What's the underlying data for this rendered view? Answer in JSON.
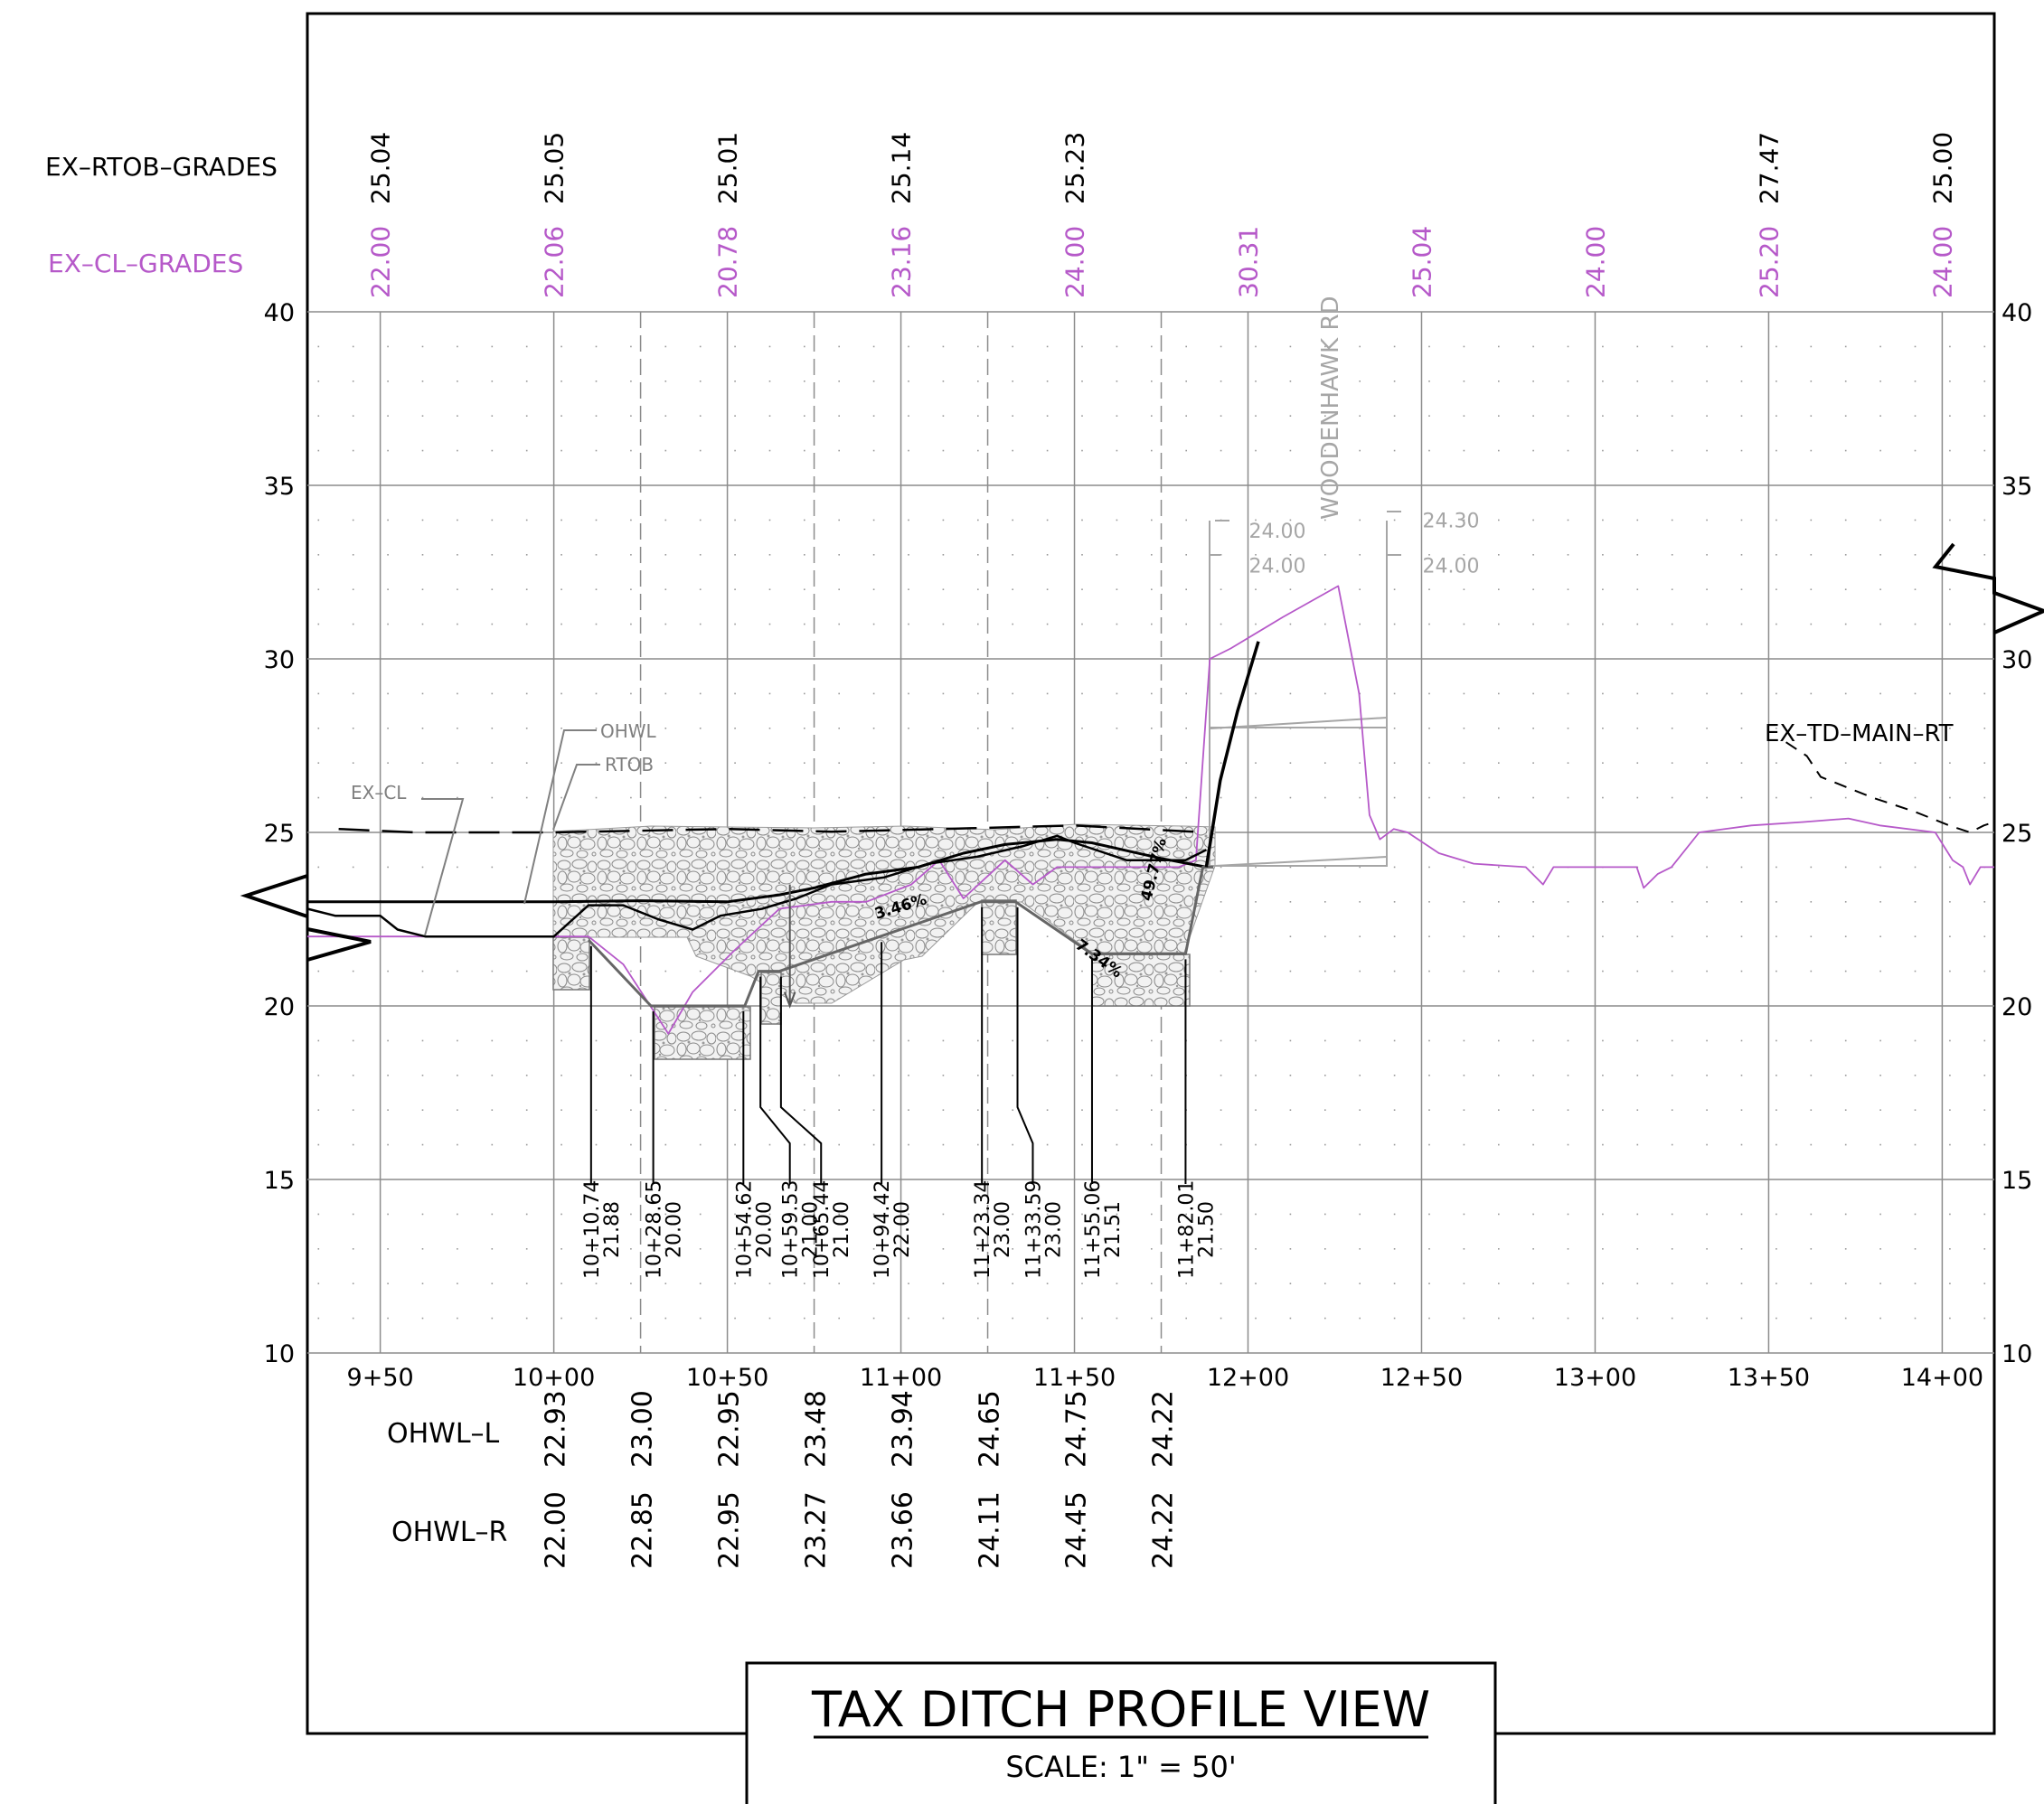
{
  "title": {
    "main": "TAX DITCH PROFILE VIEW",
    "scale": "SCALE: 1\" = 50'"
  },
  "rows": {
    "rtob_label": "EX–RTOB–GRADES",
    "cl_label": "EX–CL–GRADES",
    "rtob_values": [
      {
        "station": 950,
        "text": "25.04"
      },
      {
        "station": 1000,
        "text": "25.05"
      },
      {
        "station": 1050,
        "text": "25.01"
      },
      {
        "station": 1100,
        "text": "25.14"
      },
      {
        "station": 1150,
        "text": "25.23"
      },
      {
        "station": 1350,
        "text": "27.47"
      },
      {
        "station": 1400,
        "text": "25.00"
      }
    ],
    "cl_values": [
      {
        "station": 950,
        "text": "22.00"
      },
      {
        "station": 1000,
        "text": "22.06"
      },
      {
        "station": 1050,
        "text": "20.78"
      },
      {
        "station": 1100,
        "text": "23.16"
      },
      {
        "station": 1150,
        "text": "24.00"
      },
      {
        "station": 1200,
        "text": "30.31"
      },
      {
        "station": 1250,
        "text": "25.04"
      },
      {
        "station": 1300,
        "text": "24.00"
      },
      {
        "station": 1350,
        "text": "25.20"
      },
      {
        "station": 1400,
        "text": "24.00"
      }
    ],
    "ohwl_l_label": "OHWL–L",
    "ohwl_r_label": "OHWL–R",
    "ohwl_l_values": [
      {
        "station": 1000,
        "text": "22.93"
      },
      {
        "station": 1025,
        "text": "23.00"
      },
      {
        "station": 1050,
        "text": "22.95"
      },
      {
        "station": 1075,
        "text": "23.48"
      },
      {
        "station": 1100,
        "text": "23.94"
      },
      {
        "station": 1125,
        "text": "24.65"
      },
      {
        "station": 1150,
        "text": "24.75"
      },
      {
        "station": 1175,
        "text": "24.22"
      }
    ],
    "ohwl_r_values": [
      {
        "station": 1000,
        "text": "22.00"
      },
      {
        "station": 1025,
        "text": "22.85"
      },
      {
        "station": 1050,
        "text": "22.95"
      },
      {
        "station": 1075,
        "text": "23.27"
      },
      {
        "station": 1100,
        "text": "23.66"
      },
      {
        "station": 1125,
        "text": "24.11"
      },
      {
        "station": 1150,
        "text": "24.45"
      },
      {
        "station": 1175,
        "text": "24.22"
      }
    ]
  },
  "axes": {
    "elevation_ticks": [
      "10",
      "15",
      "20",
      "25",
      "30",
      "35",
      "40"
    ],
    "station_ticks": [
      {
        "station": 950,
        "text": "9+50"
      },
      {
        "station": 1000,
        "text": "10+00"
      },
      {
        "station": 1050,
        "text": "10+50"
      },
      {
        "station": 1100,
        "text": "11+00"
      },
      {
        "station": 1150,
        "text": "11+50"
      },
      {
        "station": 1200,
        "text": "12+00"
      },
      {
        "station": 1250,
        "text": "12+50"
      },
      {
        "station": 1300,
        "text": "13+00"
      },
      {
        "station": 1350,
        "text": "13+50"
      },
      {
        "station": 1400,
        "text": "14+00"
      }
    ],
    "x_range": [
      929,
      1415
    ],
    "y_range": [
      10,
      40
    ]
  },
  "annotations": {
    "road": "WOODENHAWK  RD",
    "ex_cl": "EX–CL",
    "ohwl": "OHWL",
    "rtob": "RTOB",
    "ex_td": "EX–TD–MAIN–RT",
    "road_elevs": [
      {
        "station": 1200,
        "elev": 33.7,
        "text": "24.00"
      },
      {
        "station": 1200,
        "elev": 32.7,
        "text": "24.00"
      },
      {
        "station": 1250,
        "elev": 34.0,
        "text": "24.30"
      },
      {
        "station": 1250,
        "elev": 32.7,
        "text": "24.00"
      }
    ],
    "slopes": [
      {
        "station": 1093,
        "elev": 22.5,
        "text": "3.46%",
        "angle": -17
      },
      {
        "station": 1150,
        "elev": 21.7,
        "text": "7.34%",
        "angle": 36
      },
      {
        "station": 1172,
        "elev": 23.0,
        "text": "49.77%",
        "angle": -76
      }
    ],
    "callouts": [
      {
        "station": 1010.74,
        "line1": "10+10.74",
        "line2": "21.88"
      },
      {
        "station": 1028.65,
        "line1": "10+28.65",
        "line2": "20.00"
      },
      {
        "station": 1054.62,
        "line1": "10+54.62",
        "line2": "20.00"
      },
      {
        "station": 1059.53,
        "line1": "10+59.53",
        "line2": "21.00"
      },
      {
        "station": 1065.44,
        "line1": "10+65.44",
        "line2": "21.00"
      },
      {
        "station": 1094.42,
        "line1": "10+94.42",
        "line2": "22.00"
      },
      {
        "station": 1123.34,
        "line1": "11+23.34",
        "line2": "23.00"
      },
      {
        "station": 1133.59,
        "line1": "11+33.59",
        "line2": "23.00"
      },
      {
        "station": 1155.06,
        "line1": "11+55.06",
        "line2": "21.51"
      },
      {
        "station": 1182.01,
        "line1": "11+82.01",
        "line2": "21.50"
      }
    ]
  },
  "profiles": {
    "existing_cl": {
      "color": "#b659c9",
      "points": [
        [
          929,
          22
        ],
        [
          975,
          22
        ],
        [
          1000,
          22
        ],
        [
          1010,
          22
        ],
        [
          1020,
          21.2
        ],
        [
          1033,
          19.2
        ],
        [
          1040,
          20.4
        ],
        [
          1052,
          21.6
        ],
        [
          1065,
          22.8
        ],
        [
          1080,
          23
        ],
        [
          1090,
          23
        ],
        [
          1103,
          23.5
        ],
        [
          1111,
          24.2
        ],
        [
          1118,
          23.1
        ],
        [
          1130,
          24.2
        ],
        [
          1138,
          23.5
        ],
        [
          1145,
          24
        ],
        [
          1155,
          24
        ],
        [
          1170,
          24
        ],
        [
          1180,
          24
        ],
        [
          1185,
          24.2
        ],
        [
          1189,
          30
        ],
        [
          1195,
          30.3
        ],
        [
          1210,
          31.2
        ],
        [
          1226,
          32.1
        ],
        [
          1232,
          29
        ],
        [
          1235,
          25.5
        ],
        [
          1238,
          24.8
        ],
        [
          1242,
          25.1
        ],
        [
          1246,
          25
        ],
        [
          1255,
          24.4
        ],
        [
          1265,
          24.1
        ],
        [
          1280,
          24
        ],
        [
          1285,
          23.5
        ],
        [
          1288,
          24
        ],
        [
          1300,
          24
        ],
        [
          1312,
          24
        ],
        [
          1314,
          23.4
        ],
        [
          1318,
          23.8
        ],
        [
          1322,
          24
        ],
        [
          1330,
          25
        ],
        [
          1345,
          25.2
        ],
        [
          1360,
          25.3
        ],
        [
          1373,
          25.4
        ],
        [
          1382,
          25.2
        ],
        [
          1398,
          25
        ],
        [
          1403,
          24.2
        ],
        [
          1406,
          24
        ],
        [
          1408,
          23.5
        ],
        [
          1411,
          24
        ],
        [
          1415,
          24
        ]
      ]
    },
    "ohwl_line": {
      "color": "#000000",
      "points": [
        [
          929,
          23
        ],
        [
          950,
          23
        ],
        [
          970,
          23
        ],
        [
          1000,
          23
        ],
        [
          1025,
          23.03
        ],
        [
          1050,
          23
        ],
        [
          1065,
          23.2
        ],
        [
          1075,
          23.4
        ],
        [
          1090,
          23.8
        ],
        [
          1105,
          24
        ],
        [
          1118,
          24.4
        ],
        [
          1130,
          24.65
        ],
        [
          1145,
          24.8
        ],
        [
          1155,
          24.7
        ],
        [
          1175,
          24.25
        ],
        [
          1188,
          24
        ]
      ]
    },
    "rtob_line": {
      "color": "#000000",
      "points": [
        [
          929,
          22.8
        ],
        [
          937,
          22.6
        ],
        [
          950,
          22.6
        ],
        [
          955,
          22.2
        ],
        [
          963,
          22
        ],
        [
          1000,
          22
        ],
        [
          1010,
          22.9
        ],
        [
          1020,
          22.9
        ],
        [
          1030,
          22.5
        ],
        [
          1040,
          22.2
        ],
        [
          1048,
          22.6
        ],
        [
          1060,
          22.8
        ],
        [
          1070,
          23.1
        ],
        [
          1080,
          23.5
        ],
        [
          1095,
          23.7
        ],
        [
          1108,
          24.1
        ],
        [
          1122,
          24.3
        ],
        [
          1135,
          24.6
        ],
        [
          1145,
          24.9
        ],
        [
          1150,
          24.7
        ],
        [
          1165,
          24.2
        ],
        [
          1182,
          24.2
        ],
        [
          1188,
          24.5
        ]
      ]
    },
    "rtob_dashed": {
      "color": "#000000",
      "points": [
        [
          938,
          25.1
        ],
        [
          960,
          25
        ],
        [
          1000,
          25
        ],
        [
          1050,
          25.1
        ],
        [
          1080,
          25.02
        ],
        [
          1120,
          25.12
        ],
        [
          1150,
          25.2
        ],
        [
          1188,
          25
        ]
      ]
    },
    "ex_td_dashed": {
      "color": "#000000",
      "points": [
        [
          1355,
          27.6
        ],
        [
          1361,
          27.2
        ],
        [
          1365,
          26.6
        ],
        [
          1370,
          26.4
        ],
        [
          1375,
          26.2
        ],
        [
          1380,
          26
        ],
        [
          1386,
          25.8
        ],
        [
          1392,
          25.6
        ],
        [
          1397,
          25.4
        ],
        [
          1402,
          25.2
        ],
        [
          1408,
          25
        ],
        [
          1412,
          25.2
        ],
        [
          1415,
          25.3
        ]
      ]
    },
    "design_grade": {
      "color": "#666666",
      "points": [
        [
          1010,
          21.9
        ],
        [
          1028,
          20
        ],
        [
          1055,
          20
        ],
        [
          1059,
          21
        ],
        [
          1065,
          21
        ],
        [
          1094,
          22
        ],
        [
          1123,
          23
        ],
        [
          1133,
          23
        ],
        [
          1155,
          21.5
        ],
        [
          1182,
          21.5
        ],
        [
          1187,
          24
        ],
        [
          1190,
          24
        ]
      ]
    },
    "black_slope": {
      "color": "#000000",
      "points": [
        [
          1188,
          24
        ],
        [
          1192,
          26.5
        ],
        [
          1197,
          28.5
        ],
        [
          1203,
          30.5
        ]
      ]
    }
  }
}
